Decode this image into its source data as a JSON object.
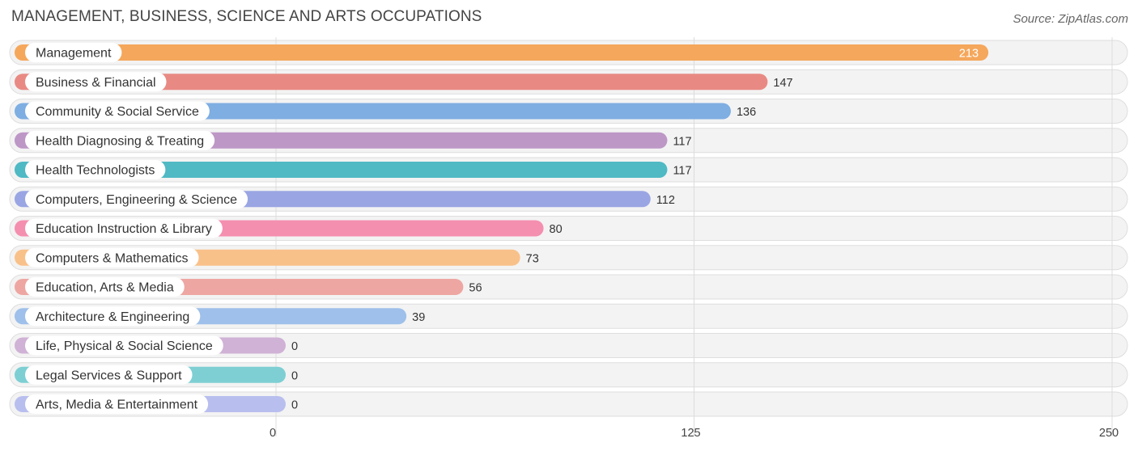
{
  "header": {
    "title": "MANAGEMENT, BUSINESS, SCIENCE AND ARTS OCCUPATIONS",
    "source": "Source: ZipAtlas.com"
  },
  "chart_data": {
    "type": "bar",
    "orientation": "horizontal",
    "title": "MANAGEMENT, BUSINESS, SCIENCE AND ARTS OCCUPATIONS",
    "xlabel": "",
    "ylabel": "",
    "xlim": [
      0,
      250
    ],
    "ticks": [
      0,
      125,
      250
    ],
    "tick_labels": [
      "0",
      "125",
      "250"
    ],
    "grid": true,
    "categories": [
      "Management",
      "Business & Financial",
      "Community & Social Service",
      "Health Diagnosing & Treating",
      "Health Technologists",
      "Computers, Engineering & Science",
      "Education Instruction & Library",
      "Computers & Mathematics",
      "Education, Arts & Media",
      "Architecture & Engineering",
      "Life, Physical & Social Science",
      "Legal Services & Support",
      "Arts, Media & Entertainment"
    ],
    "values": [
      213,
      147,
      136,
      117,
      117,
      112,
      80,
      73,
      56,
      39,
      0,
      0,
      0
    ],
    "value_labels": [
      "213",
      "147",
      "136",
      "117",
      "117",
      "112",
      "80",
      "73",
      "56",
      "39",
      "0",
      "0",
      "0"
    ],
    "colors": [
      "#f5a75b",
      "#e88a83",
      "#7eaee2",
      "#bd97c6",
      "#4fb9c4",
      "#9aa6e3",
      "#f48fb0",
      "#f9c18a",
      "#eea6a2",
      "#9ec0ea",
      "#d0b2d6",
      "#7dcfd3",
      "#b8bfee"
    ]
  }
}
